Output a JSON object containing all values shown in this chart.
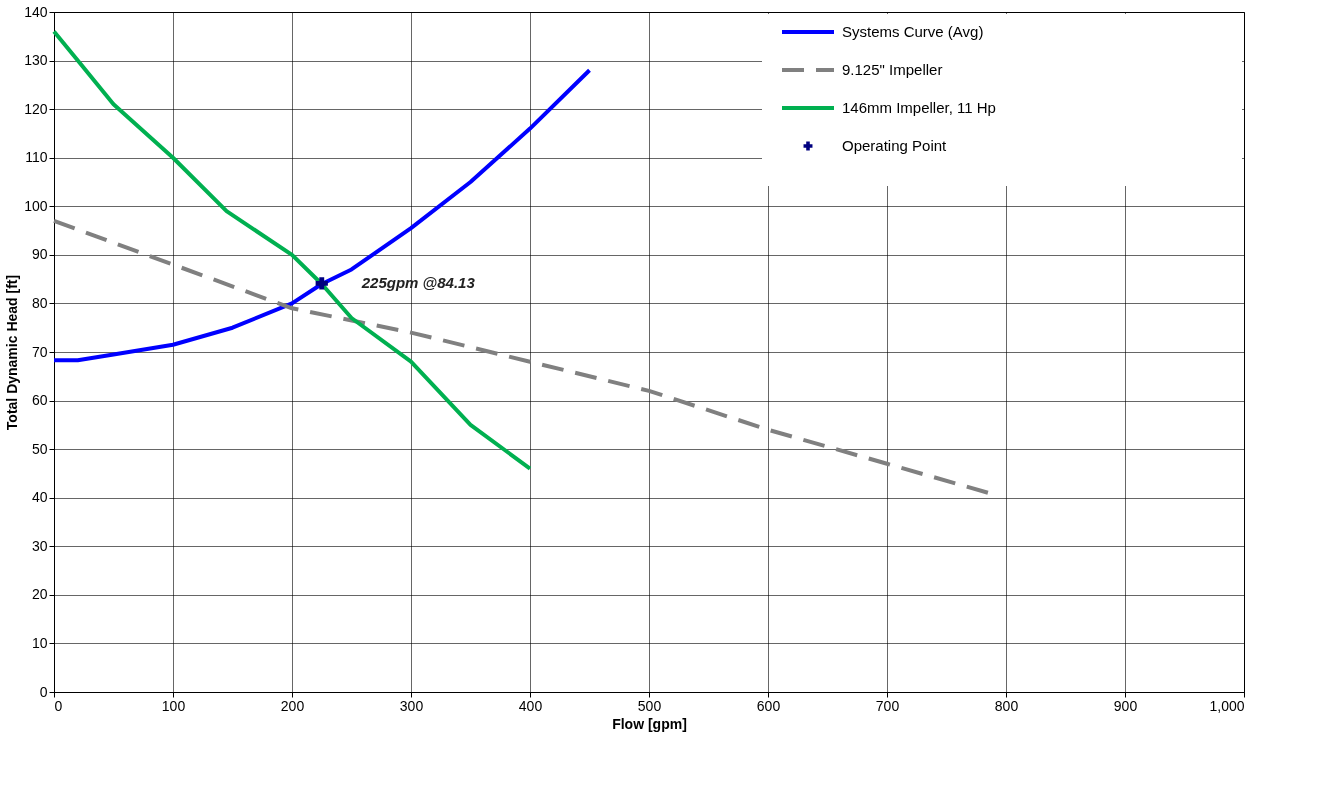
{
  "chart_data": {
    "type": "line",
    "xlabel": "Flow  [gpm]",
    "ylabel": "Total Dynamic Head [ft]",
    "xlim": [
      0,
      1000
    ],
    "xticks": [
      0,
      100,
      200,
      300,
      400,
      500,
      600,
      700,
      800,
      900,
      {
        "value": 1000,
        "label": "1,000"
      }
    ],
    "ylim": [
      0,
      140
    ],
    "yticks": [
      0,
      10,
      20,
      30,
      40,
      50,
      60,
      70,
      80,
      90,
      100,
      110,
      120,
      130,
      140
    ],
    "grid": true,
    "legend": "top right",
    "series": [
      {
        "name": "Systems Curve (Avg)",
        "color": "#0000ff",
        "line_style": "solid",
        "x": [
          0,
          20,
          50,
          100,
          150,
          200,
          225,
          250,
          300,
          350,
          400,
          450
        ],
        "values": [
          68.3,
          68.3,
          69.5,
          71.5,
          75,
          80,
          84,
          87,
          95.5,
          105,
          116,
          128
        ]
      },
      {
        "name": "9.125\" Impeller",
        "color": "#808080",
        "line_style": "dashed",
        "x": [
          0,
          100,
          200,
          300,
          400,
          500,
          600,
          700,
          785
        ],
        "values": [
          97,
          88,
          79,
          74,
          68,
          62,
          54,
          47,
          41
        ]
      },
      {
        "name": "146mm Impeller, 11 Hp",
        "color": "#00b050",
        "line_style": "solid",
        "x": [
          0,
          20,
          50,
          100,
          145,
          200,
          225,
          250,
          300,
          350,
          400
        ],
        "values": [
          136,
          130,
          121,
          110,
          99,
          90,
          84,
          77,
          68,
          55,
          46
        ]
      },
      {
        "name": "Operating Point",
        "type": "scatter",
        "marker": "cross",
        "color": "#000080",
        "x": [
          225
        ],
        "values": [
          84.13
        ]
      }
    ],
    "annotations": [
      {
        "text": "225gpm @84.13",
        "x": 225,
        "y": 84.13
      }
    ]
  }
}
